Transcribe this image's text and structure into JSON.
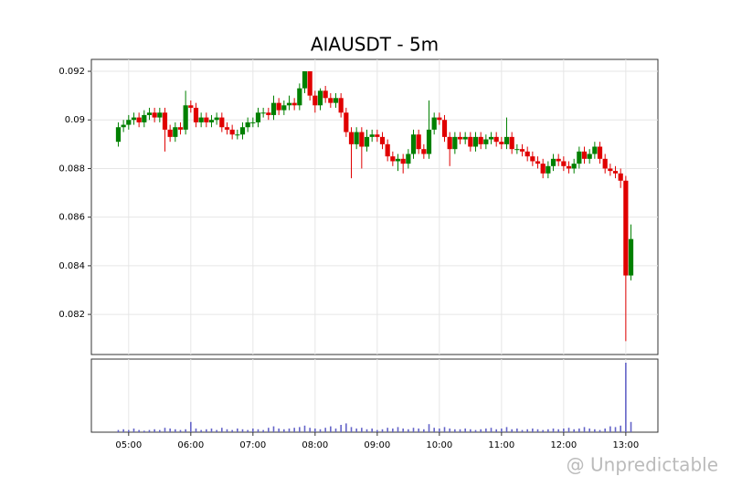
{
  "chart_data": {
    "type": "candlestick",
    "title": "AIAUSDT - 5m",
    "watermark": "@ Unpredictable",
    "x": [
      "04:50",
      "04:55",
      "05:00",
      "05:05",
      "05:10",
      "05:15",
      "05:20",
      "05:25",
      "05:30",
      "05:35",
      "05:40",
      "05:45",
      "05:50",
      "05:55",
      "06:00",
      "06:05",
      "06:10",
      "06:15",
      "06:20",
      "06:25",
      "06:30",
      "06:35",
      "06:40",
      "06:45",
      "06:50",
      "06:55",
      "07:00",
      "07:05",
      "07:10",
      "07:15",
      "07:20",
      "07:25",
      "07:30",
      "07:35",
      "07:40",
      "07:45",
      "07:50",
      "07:55",
      "08:00",
      "08:05",
      "08:10",
      "08:15",
      "08:20",
      "08:25",
      "08:30",
      "08:35",
      "08:40",
      "08:45",
      "08:50",
      "08:55",
      "09:00",
      "09:05",
      "09:10",
      "09:15",
      "09:20",
      "09:25",
      "09:30",
      "09:35",
      "09:40",
      "09:45",
      "09:50",
      "09:55",
      "10:00",
      "10:05",
      "10:10",
      "10:15",
      "10:20",
      "10:25",
      "10:30",
      "10:35",
      "10:40",
      "10:45",
      "10:50",
      "10:55",
      "11:00",
      "11:05",
      "11:10",
      "11:15",
      "11:20",
      "11:25",
      "11:30",
      "11:35",
      "11:40",
      "11:45",
      "11:50",
      "11:55",
      "12:00",
      "12:05",
      "12:10",
      "12:15",
      "12:20",
      "12:25",
      "12:30",
      "12:35",
      "12:40",
      "12:45",
      "12:50",
      "12:55",
      "13:00",
      "13:05"
    ],
    "open": [
      0.0891,
      0.0897,
      0.0898,
      0.09,
      0.0901,
      0.0899,
      0.0902,
      0.0903,
      0.0901,
      0.0903,
      0.0896,
      0.0893,
      0.0897,
      0.0896,
      0.0906,
      0.0905,
      0.0899,
      0.0901,
      0.0899,
      0.09,
      0.0901,
      0.0897,
      0.0896,
      0.0894,
      0.0894,
      0.0897,
      0.0899,
      0.0899,
      0.0903,
      0.0903,
      0.0902,
      0.0907,
      0.0904,
      0.0906,
      0.0907,
      0.0906,
      0.0913,
      0.092,
      0.091,
      0.0906,
      0.0912,
      0.0909,
      0.0907,
      0.0909,
      0.0903,
      0.0895,
      0.089,
      0.0895,
      0.0889,
      0.0893,
      0.0894,
      0.0893,
      0.089,
      0.0885,
      0.0883,
      0.0884,
      0.0882,
      0.0886,
      0.0894,
      0.0888,
      0.0886,
      0.0896,
      0.0901,
      0.09,
      0.0893,
      0.0888,
      0.0893,
      0.0892,
      0.0893,
      0.0889,
      0.0893,
      0.089,
      0.0892,
      0.0893,
      0.0891,
      0.089,
      0.0893,
      0.0888,
      0.0888,
      0.0887,
      0.0885,
      0.0883,
      0.0882,
      0.0878,
      0.0881,
      0.0884,
      0.0883,
      0.0881,
      0.088,
      0.0882,
      0.0887,
      0.0884,
      0.0886,
      0.0889,
      0.0884,
      0.088,
      0.0879,
      0.0878,
      0.0875,
      0.0836
    ],
    "high": [
      0.0899,
      0.09,
      0.0902,
      0.0903,
      0.0903,
      0.0904,
      0.0905,
      0.0905,
      0.0905,
      0.0905,
      0.0898,
      0.0899,
      0.0899,
      0.0912,
      0.0908,
      0.0907,
      0.0903,
      0.0903,
      0.0902,
      0.0903,
      0.0903,
      0.0899,
      0.0898,
      0.0896,
      0.0899,
      0.0901,
      0.0901,
      0.0905,
      0.0905,
      0.0905,
      0.091,
      0.0909,
      0.0908,
      0.091,
      0.0909,
      0.0915,
      0.092,
      0.092,
      0.0912,
      0.0913,
      0.0914,
      0.0911,
      0.0911,
      0.0911,
      0.0905,
      0.0897,
      0.0897,
      0.0897,
      0.0896,
      0.0896,
      0.0896,
      0.0895,
      0.0892,
      0.0887,
      0.0886,
      0.0886,
      0.0888,
      0.0896,
      0.0896,
      0.089,
      0.0908,
      0.0903,
      0.0903,
      0.0902,
      0.0895,
      0.0895,
      0.0895,
      0.0895,
      0.0895,
      0.0895,
      0.0895,
      0.0894,
      0.0895,
      0.0895,
      0.0893,
      0.0901,
      0.0895,
      0.089,
      0.089,
      0.0889,
      0.0887,
      0.0885,
      0.0884,
      0.0883,
      0.0886,
      0.0886,
      0.0885,
      0.0883,
      0.0884,
      0.0889,
      0.0889,
      0.0888,
      0.0891,
      0.0891,
      0.0886,
      0.0882,
      0.0881,
      0.088,
      0.0877,
      0.0857
    ],
    "low": [
      0.0889,
      0.0895,
      0.0896,
      0.0898,
      0.0897,
      0.0897,
      0.09,
      0.0899,
      0.0899,
      0.0887,
      0.0891,
      0.0891,
      0.0894,
      0.0894,
      0.0903,
      0.0897,
      0.0897,
      0.0897,
      0.0897,
      0.0898,
      0.0895,
      0.0894,
      0.0892,
      0.0892,
      0.0892,
      0.0895,
      0.0897,
      0.0897,
      0.0901,
      0.09,
      0.09,
      0.0902,
      0.0902,
      0.0904,
      0.0904,
      0.0904,
      0.0911,
      0.0908,
      0.0903,
      0.0904,
      0.0907,
      0.0905,
      0.0905,
      0.0901,
      0.0893,
      0.0876,
      0.0888,
      0.088,
      0.0887,
      0.0891,
      0.0891,
      0.0888,
      0.0883,
      0.0881,
      0.0879,
      0.0878,
      0.088,
      0.0884,
      0.0886,
      0.0884,
      0.0884,
      0.0894,
      0.0898,
      0.0891,
      0.0881,
      0.0886,
      0.089,
      0.089,
      0.0887,
      0.0887,
      0.0888,
      0.0888,
      0.089,
      0.0889,
      0.0888,
      0.0888,
      0.0886,
      0.0886,
      0.0885,
      0.0883,
      0.0881,
      0.088,
      0.0876,
      0.0876,
      0.0879,
      0.0881,
      0.0879,
      0.0878,
      0.0878,
      0.088,
      0.0882,
      0.0882,
      0.0884,
      0.0882,
      0.0878,
      0.0877,
      0.0876,
      0.0872,
      0.0809,
      0.0834
    ],
    "close": [
      0.0897,
      0.0898,
      0.09,
      0.0901,
      0.0899,
      0.0902,
      0.0903,
      0.0901,
      0.0903,
      0.0896,
      0.0893,
      0.0897,
      0.0896,
      0.0906,
      0.0905,
      0.0899,
      0.0901,
      0.0899,
      0.09,
      0.0901,
      0.0897,
      0.0896,
      0.0894,
      0.0894,
      0.0897,
      0.0899,
      0.0899,
      0.0903,
      0.0903,
      0.0902,
      0.0907,
      0.0904,
      0.0906,
      0.0907,
      0.0906,
      0.0913,
      0.092,
      0.091,
      0.0906,
      0.0912,
      0.0909,
      0.0907,
      0.0909,
      0.0903,
      0.0895,
      0.089,
      0.0895,
      0.0889,
      0.0893,
      0.0894,
      0.0893,
      0.089,
      0.0885,
      0.0883,
      0.0884,
      0.0882,
      0.0886,
      0.0894,
      0.0888,
      0.0886,
      0.0896,
      0.0901,
      0.09,
      0.0893,
      0.0888,
      0.0893,
      0.0892,
      0.0893,
      0.0889,
      0.0893,
      0.089,
      0.0892,
      0.0893,
      0.0891,
      0.089,
      0.0893,
      0.0888,
      0.0888,
      0.0887,
      0.0885,
      0.0883,
      0.0882,
      0.0878,
      0.0881,
      0.0884,
      0.0883,
      0.0881,
      0.088,
      0.0882,
      0.0887,
      0.0884,
      0.0886,
      0.0889,
      0.0884,
      0.088,
      0.0879,
      0.0878,
      0.0875,
      0.0836,
      0.0851
    ],
    "volume": [
      3,
      4,
      3,
      5,
      3,
      2,
      3,
      4,
      3,
      6,
      5,
      4,
      3,
      4,
      14,
      5,
      3,
      4,
      5,
      3,
      6,
      4,
      3,
      5,
      4,
      3,
      5,
      4,
      3,
      6,
      8,
      5,
      4,
      5,
      6,
      7,
      9,
      6,
      5,
      4,
      6,
      8,
      5,
      10,
      12,
      7,
      5,
      6,
      4,
      5,
      3,
      4,
      6,
      5,
      7,
      5,
      4,
      6,
      5,
      4,
      11,
      6,
      5,
      7,
      5,
      4,
      4,
      5,
      4,
      3,
      4,
      5,
      6,
      4,
      5,
      7,
      4,
      5,
      3,
      4,
      5,
      4,
      3,
      4,
      5,
      4,
      5,
      6,
      4,
      5,
      7,
      5,
      4,
      3,
      5,
      8,
      7,
      9,
      95,
      14
    ],
    "up_color": "#008000",
    "down_color": "#e00000",
    "volume_color": "#6464c8",
    "xlim": [
      "04:24",
      "13:31"
    ],
    "xticks": [
      "05:00",
      "06:00",
      "07:00",
      "08:00",
      "09:00",
      "10:00",
      "11:00",
      "12:00",
      "13:00"
    ],
    "ylim": [
      0.08035,
      0.09249
    ],
    "yticks": [
      0.082,
      0.084,
      0.086,
      0.088,
      0.09,
      0.092
    ],
    "volume_ylim": [
      0,
      100
    ],
    "grid": true
  }
}
